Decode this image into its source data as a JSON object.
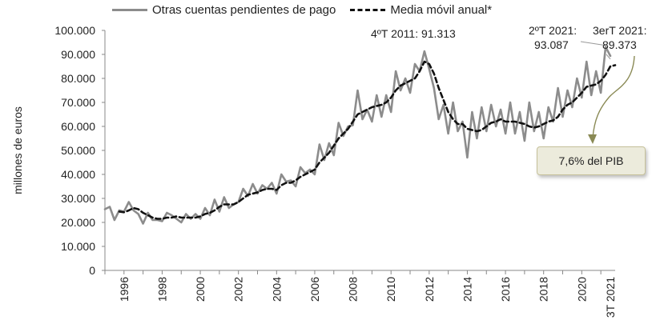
{
  "legend": {
    "series1": "Otras cuentas pendientes de pago",
    "series2": "Media móvil anual*"
  },
  "annotations": {
    "peak_2011": "4ºT 2011: 91.313",
    "q2_2021_a": "2ºT 2021:",
    "q2_2021_b": "93.087",
    "q3_2021_a": "3erT 2021:",
    "q3_2021_b": "89.373",
    "pib_box": "7,6% del PIB"
  },
  "colors": {
    "series1": "#8c8c8c",
    "series2": "#111111",
    "axis": "#888888",
    "callout_fill": "#ecebdc",
    "callout_arrow": "#8a8a55"
  },
  "chart_data": {
    "type": "line",
    "ylabel": "millones de euros",
    "ylim": [
      0,
      100000
    ],
    "yticks": [
      0,
      10000,
      20000,
      30000,
      40000,
      50000,
      60000,
      70000,
      80000,
      90000,
      100000
    ],
    "ytick_labels": [
      "0",
      "10.000",
      "20.000",
      "30.000",
      "40.000",
      "50.000",
      "60.000",
      "70.000",
      "80.000",
      "90.000",
      "100.000"
    ],
    "xlim": [
      1995,
      2021.75
    ],
    "xticks": [
      1996,
      1998,
      2000,
      2002,
      2004,
      2006,
      2008,
      2010,
      2012,
      2014,
      2016,
      2018,
      2020,
      2021.5
    ],
    "xtick_labels": [
      "1996",
      "1998",
      "2000",
      "2002",
      "2004",
      "2006",
      "2008",
      "2010",
      "2012",
      "2014",
      "2016",
      "2018",
      "2020",
      "3T 2021"
    ],
    "legend_position": "top",
    "grid": false,
    "series": [
      {
        "name": "Otras cuentas pendientes de pago",
        "style": "solid",
        "points": [
          [
            1995.0,
            25500
          ],
          [
            1995.25,
            26500
          ],
          [
            1995.5,
            21000
          ],
          [
            1995.75,
            25000
          ],
          [
            1996.0,
            24500
          ],
          [
            1996.25,
            28500
          ],
          [
            1996.5,
            25000
          ],
          [
            1996.75,
            23500
          ],
          [
            1997.0,
            19500
          ],
          [
            1997.25,
            24000
          ],
          [
            1997.5,
            21000
          ],
          [
            1997.75,
            21000
          ],
          [
            1998.0,
            20500
          ],
          [
            1998.25,
            24000
          ],
          [
            1998.5,
            23000
          ],
          [
            1998.75,
            21500
          ],
          [
            1999.0,
            20000
          ],
          [
            1999.25,
            23500
          ],
          [
            1999.5,
            21500
          ],
          [
            1999.75,
            23500
          ],
          [
            2000.0,
            21500
          ],
          [
            2000.25,
            26000
          ],
          [
            2000.5,
            23000
          ],
          [
            2000.75,
            29500
          ],
          [
            2001.0,
            24500
          ],
          [
            2001.25,
            30500
          ],
          [
            2001.5,
            26000
          ],
          [
            2001.75,
            27500
          ],
          [
            2002.0,
            28500
          ],
          [
            2002.25,
            34000
          ],
          [
            2002.5,
            31000
          ],
          [
            2002.75,
            36000
          ],
          [
            2003.0,
            32000
          ],
          [
            2003.25,
            35500
          ],
          [
            2003.5,
            34000
          ],
          [
            2003.75,
            36500
          ],
          [
            2004.0,
            32000
          ],
          [
            2004.25,
            40000
          ],
          [
            2004.5,
            37000
          ],
          [
            2004.75,
            37500
          ],
          [
            2005.0,
            35000
          ],
          [
            2005.25,
            43000
          ],
          [
            2005.5,
            40500
          ],
          [
            2005.75,
            42000
          ],
          [
            2006.0,
            40000
          ],
          [
            2006.25,
            52500
          ],
          [
            2006.5,
            46000
          ],
          [
            2006.75,
            53000
          ],
          [
            2007.0,
            48000
          ],
          [
            2007.25,
            61500
          ],
          [
            2007.5,
            56000
          ],
          [
            2007.75,
            60000
          ],
          [
            2008.0,
            60500
          ],
          [
            2008.25,
            75000
          ],
          [
            2008.5,
            63000
          ],
          [
            2008.75,
            67000
          ],
          [
            2009.0,
            62000
          ],
          [
            2009.25,
            73000
          ],
          [
            2009.5,
            64000
          ],
          [
            2009.75,
            73000
          ],
          [
            2010.0,
            66000
          ],
          [
            2010.25,
            83000
          ],
          [
            2010.5,
            75000
          ],
          [
            2010.75,
            80000
          ],
          [
            2011.0,
            74000
          ],
          [
            2011.25,
            86000
          ],
          [
            2011.5,
            83000
          ],
          [
            2011.75,
            91313
          ],
          [
            2012.0,
            84000
          ],
          [
            2012.25,
            76000
          ],
          [
            2012.5,
            63000
          ],
          [
            2012.75,
            69000
          ],
          [
            2013.0,
            57000
          ],
          [
            2013.25,
            70000
          ],
          [
            2013.5,
            58000
          ],
          [
            2013.75,
            62000
          ],
          [
            2014.0,
            47000
          ],
          [
            2014.25,
            66000
          ],
          [
            2014.5,
            55000
          ],
          [
            2014.75,
            68000
          ],
          [
            2015.0,
            58000
          ],
          [
            2015.25,
            69000
          ],
          [
            2015.5,
            60000
          ],
          [
            2015.75,
            67000
          ],
          [
            2016.0,
            57000
          ],
          [
            2016.25,
            70000
          ],
          [
            2016.5,
            57000
          ],
          [
            2016.75,
            66000
          ],
          [
            2017.0,
            54000
          ],
          [
            2017.25,
            70000
          ],
          [
            2017.5,
            58000
          ],
          [
            2017.75,
            66000
          ],
          [
            2018.0,
            55000
          ],
          [
            2018.25,
            68000
          ],
          [
            2018.5,
            62000
          ],
          [
            2018.75,
            76000
          ],
          [
            2019.0,
            64000
          ],
          [
            2019.25,
            75000
          ],
          [
            2019.5,
            68000
          ],
          [
            2019.75,
            80000
          ],
          [
            2020.0,
            72000
          ],
          [
            2020.25,
            87000
          ],
          [
            2020.5,
            73000
          ],
          [
            2020.75,
            83000
          ],
          [
            2021.0,
            74000
          ],
          [
            2021.25,
            93087
          ],
          [
            2021.5,
            89373
          ]
        ]
      },
      {
        "name": "Media móvil anual*",
        "style": "dashed",
        "points": [
          [
            1995.75,
            24500
          ],
          [
            1996.0,
            24250
          ],
          [
            1996.25,
            25000
          ],
          [
            1996.5,
            26000
          ],
          [
            1996.75,
            25500
          ],
          [
            1997.0,
            24000
          ],
          [
            1997.25,
            23000
          ],
          [
            1997.5,
            22000
          ],
          [
            1997.75,
            21500
          ],
          [
            1998.0,
            21500
          ],
          [
            1998.25,
            22000
          ],
          [
            1998.5,
            22000
          ],
          [
            1998.75,
            22500
          ],
          [
            1999.0,
            22000
          ],
          [
            1999.25,
            22000
          ],
          [
            1999.5,
            22000
          ],
          [
            1999.75,
            22000
          ],
          [
            2000.0,
            22500
          ],
          [
            2000.25,
            23500
          ],
          [
            2000.5,
            24000
          ],
          [
            2000.75,
            25000
          ],
          [
            2001.0,
            26500
          ],
          [
            2001.25,
            27500
          ],
          [
            2001.5,
            27500
          ],
          [
            2001.75,
            27500
          ],
          [
            2002.0,
            28500
          ],
          [
            2002.25,
            30000
          ],
          [
            2002.5,
            31500
          ],
          [
            2002.75,
            32000
          ],
          [
            2003.0,
            32500
          ],
          [
            2003.25,
            33500
          ],
          [
            2003.5,
            34000
          ],
          [
            2003.75,
            34000
          ],
          [
            2004.0,
            33500
          ],
          [
            2004.25,
            35500
          ],
          [
            2004.5,
            36500
          ],
          [
            2004.75,
            36500
          ],
          [
            2005.0,
            37500
          ],
          [
            2005.25,
            39000
          ],
          [
            2005.5,
            40000
          ],
          [
            2005.75,
            41000
          ],
          [
            2006.0,
            42000
          ],
          [
            2006.25,
            45000
          ],
          [
            2006.5,
            47000
          ],
          [
            2006.75,
            49000
          ],
          [
            2007.0,
            52000
          ],
          [
            2007.25,
            55000
          ],
          [
            2007.5,
            57000
          ],
          [
            2007.75,
            59000
          ],
          [
            2008.0,
            62000
          ],
          [
            2008.25,
            65000
          ],
          [
            2008.5,
            66000
          ],
          [
            2008.75,
            67000
          ],
          [
            2009.0,
            68000
          ],
          [
            2009.25,
            68500
          ],
          [
            2009.5,
            69000
          ],
          [
            2009.75,
            70000
          ],
          [
            2010.0,
            72000
          ],
          [
            2010.25,
            75000
          ],
          [
            2010.5,
            77000
          ],
          [
            2010.75,
            78000
          ],
          [
            2011.0,
            79000
          ],
          [
            2011.25,
            80000
          ],
          [
            2011.5,
            83000
          ],
          [
            2011.75,
            87000
          ],
          [
            2012.0,
            86000
          ],
          [
            2012.25,
            82000
          ],
          [
            2012.5,
            76000
          ],
          [
            2012.75,
            71000
          ],
          [
            2013.0,
            66000
          ],
          [
            2013.25,
            63000
          ],
          [
            2013.5,
            61000
          ],
          [
            2013.75,
            61000
          ],
          [
            2014.0,
            59000
          ],
          [
            2014.25,
            58500
          ],
          [
            2014.5,
            58000
          ],
          [
            2014.75,
            58500
          ],
          [
            2015.0,
            60000
          ],
          [
            2015.25,
            61500
          ],
          [
            2015.5,
            62000
          ],
          [
            2015.75,
            63000
          ],
          [
            2016.0,
            62000
          ],
          [
            2016.25,
            62000
          ],
          [
            2016.5,
            62000
          ],
          [
            2016.75,
            61500
          ],
          [
            2017.0,
            61000
          ],
          [
            2017.25,
            60000
          ],
          [
            2017.5,
            59500
          ],
          [
            2017.75,
            60000
          ],
          [
            2018.0,
            61000
          ],
          [
            2018.25,
            62000
          ],
          [
            2018.5,
            62500
          ],
          [
            2018.75,
            64000
          ],
          [
            2019.0,
            67000
          ],
          [
            2019.25,
            69000
          ],
          [
            2019.5,
            70000
          ],
          [
            2019.75,
            72000
          ],
          [
            2020.0,
            74000
          ],
          [
            2020.25,
            76500
          ],
          [
            2020.5,
            77000
          ],
          [
            2020.75,
            77500
          ],
          [
            2021.0,
            79000
          ],
          [
            2021.25,
            81500
          ],
          [
            2021.5,
            85000
          ],
          [
            2021.75,
            85500
          ]
        ]
      }
    ]
  }
}
